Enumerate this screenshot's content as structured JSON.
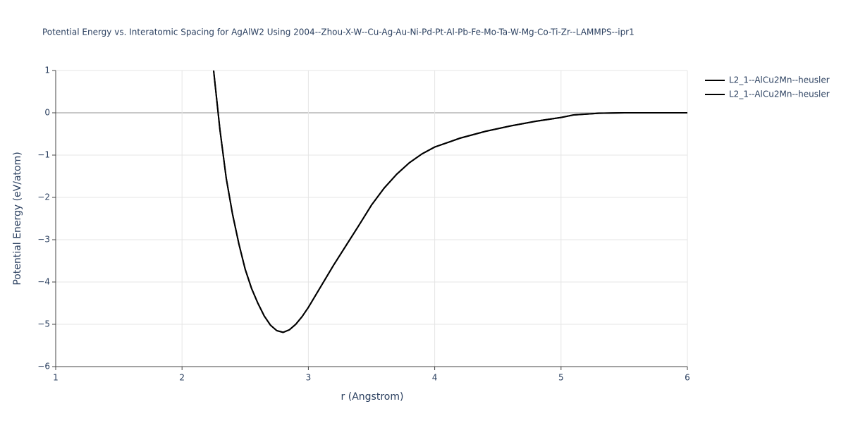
{
  "chart_data": {
    "type": "line",
    "title": "Potential Energy vs. Interatomic Spacing for AgAlW2 Using 2004--Zhou-X-W--Cu-Ag-Au-Ni-Pd-Pt-Al-Pb-Fe-Mo-Ta-W-Mg-Co-Ti-Zr--LAMMPS--ipr1",
    "x_label": "r (Angstrom)",
    "y_label": "Potential Energy (eV/atom)",
    "x": [
      2.25,
      2.3,
      2.35,
      2.4,
      2.45,
      2.5,
      2.55,
      2.6,
      2.65,
      2.7,
      2.75,
      2.8,
      2.85,
      2.9,
      2.95,
      3.0,
      3.1,
      3.2,
      3.3,
      3.4,
      3.5,
      3.6,
      3.7,
      3.8,
      3.9,
      4.0,
      4.2,
      4.4,
      4.6,
      4.8,
      5.0,
      5.1,
      5.3,
      5.5,
      6.0
    ],
    "series": [
      {
        "name": "L2_1--AlCu2Mn--heusler",
        "color": "#000000",
        "values": [
          1.0,
          -0.4,
          -1.55,
          -2.4,
          -3.1,
          -3.7,
          -4.15,
          -4.5,
          -4.8,
          -5.02,
          -5.15,
          -5.19,
          -5.13,
          -5.0,
          -4.82,
          -4.6,
          -4.1,
          -3.6,
          -3.13,
          -2.66,
          -2.18,
          -1.78,
          -1.45,
          -1.18,
          -0.97,
          -0.81,
          -0.6,
          -0.44,
          -0.31,
          -0.2,
          -0.11,
          -0.05,
          -0.01,
          0,
          0
        ]
      },
      {
        "name": "L2_1--AlCu2Mn--heusler",
        "color": "#000000",
        "values": [
          1.0,
          -0.4,
          -1.55,
          -2.4,
          -3.1,
          -3.7,
          -4.15,
          -4.5,
          -4.8,
          -5.02,
          -5.15,
          -5.19,
          -5.13,
          -5.0,
          -4.82,
          -4.6,
          -4.1,
          -3.6,
          -3.13,
          -2.66,
          -2.18,
          -1.78,
          -1.45,
          -1.18,
          -0.97,
          -0.81,
          -0.6,
          -0.44,
          -0.31,
          -0.2,
          -0.11,
          -0.05,
          -0.01,
          0,
          0
        ]
      }
    ],
    "xlim": [
      1,
      6
    ],
    "xticks": [
      1,
      2,
      3,
      4,
      5,
      6
    ],
    "ylim": [
      -6,
      1
    ],
    "yticks": [
      {
        "value": -6,
        "label": "−6"
      },
      {
        "value": -5,
        "label": "−5"
      },
      {
        "value": -4,
        "label": "−4"
      },
      {
        "value": -3,
        "label": "−3"
      },
      {
        "value": -2,
        "label": "−2"
      },
      {
        "value": -1,
        "label": "−1"
      },
      0,
      1
    ],
    "grid": true
  }
}
